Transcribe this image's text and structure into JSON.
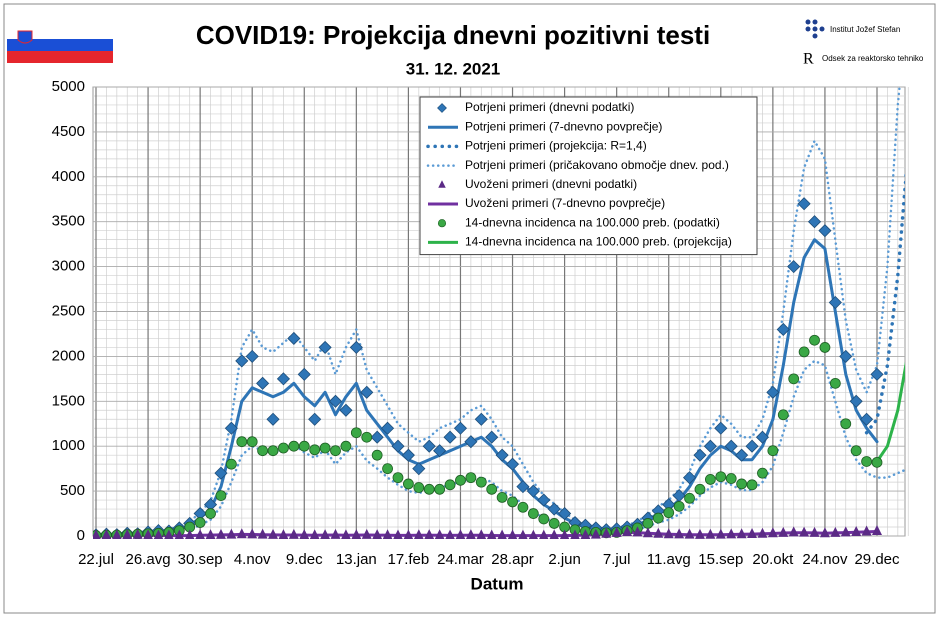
{
  "header": {
    "logos": [
      "Institut Jožef Stefan",
      "Odsek za reaktorsko tehniko"
    ]
  },
  "chart_data": {
    "type": "line",
    "title": "COVID19: Projekcija dnevni pozitivni testi",
    "subtitle": "31. 12. 2021",
    "x_label": "Datum",
    "categories": [
      "22.jul",
      null,
      null,
      null,
      null,
      "26.avg",
      null,
      null,
      null,
      null,
      "30.sep",
      null,
      null,
      null,
      null,
      "4.nov",
      null,
      null,
      null,
      null,
      "9.dec",
      null,
      null,
      null,
      null,
      "13.jan",
      null,
      null,
      null,
      null,
      "17.feb",
      null,
      null,
      null,
      null,
      "24.mar",
      null,
      null,
      null,
      null,
      "28.apr",
      null,
      null,
      null,
      null,
      "2.jun",
      null,
      null,
      null,
      null,
      "7.jul",
      null,
      null,
      null,
      null,
      "11.avg",
      null,
      null,
      null,
      null,
      "15.sep",
      null,
      null,
      null,
      null,
      "20.okt",
      null,
      null,
      null,
      null,
      "24.nov",
      null,
      null,
      null,
      null,
      "29.dec",
      null,
      null,
      null
    ],
    "ylim": [
      0,
      5000
    ],
    "yticks": [
      0,
      500,
      1000,
      1500,
      2000,
      2500,
      3000,
      3500,
      4000,
      4500,
      5000
    ],
    "grid": true,
    "legend": "top",
    "series": [
      {
        "name": "Potrjeni primeri (dnevni podatki)",
        "style": "diamond",
        "color": "#2e75b6",
        "values": [
          12,
          20,
          15,
          30,
          25,
          45,
          60,
          55,
          90,
          140,
          250,
          350,
          700,
          1200,
          1950,
          2000,
          1700,
          1300,
          1750,
          2200,
          1800,
          1300,
          2100,
          1500,
          1400,
          2100,
          1600,
          1100,
          1200,
          1000,
          900,
          750,
          1000,
          950,
          1100,
          1200,
          1050,
          1300,
          1100,
          900,
          800,
          550,
          500,
          400,
          300,
          250,
          150,
          120,
          90,
          70,
          80,
          100,
          130,
          200,
          280,
          350,
          450,
          650,
          900,
          1000,
          1200,
          1000,
          900,
          1000,
          1100,
          1600,
          2300,
          3000,
          3700,
          3500,
          3400,
          2600,
          2000,
          1500,
          1300,
          1800,
          null,
          null,
          null
        ]
      },
      {
        "name": "Potrjeni primeri (7-dnevno povprečje)",
        "style": "line",
        "color": "#2e75b6",
        "values": [
          10,
          15,
          20,
          25,
          30,
          40,
          50,
          60,
          80,
          120,
          200,
          300,
          550,
          1000,
          1500,
          1650,
          1600,
          1550,
          1600,
          1700,
          1550,
          1450,
          1600,
          1350,
          1550,
          1700,
          1400,
          1250,
          1100,
          950,
          850,
          800,
          850,
          900,
          950,
          1000,
          1050,
          1100,
          1000,
          850,
          750,
          600,
          450,
          350,
          280,
          200,
          140,
          100,
          80,
          60,
          70,
          90,
          120,
          180,
          250,
          300,
          400,
          550,
          750,
          900,
          1000,
          950,
          850,
          850,
          1000,
          1300,
          1900,
          2600,
          3100,
          3300,
          3200,
          2500,
          1800,
          1400,
          1200,
          1050,
          null,
          null,
          null
        ]
      },
      {
        "name": "Potrjeni primeri (projekcija: R=1,4)",
        "style": "dotted-bold",
        "color": "#2e75b6",
        "values": [
          null,
          null,
          null,
          null,
          null,
          null,
          null,
          null,
          null,
          null,
          null,
          null,
          null,
          null,
          null,
          null,
          null,
          null,
          null,
          null,
          null,
          null,
          null,
          null,
          null,
          null,
          null,
          null,
          null,
          null,
          null,
          null,
          null,
          null,
          null,
          null,
          null,
          null,
          null,
          null,
          null,
          null,
          null,
          null,
          null,
          null,
          null,
          null,
          null,
          null,
          null,
          null,
          null,
          null,
          null,
          null,
          null,
          null,
          null,
          null,
          null,
          null,
          null,
          null,
          null,
          null,
          null,
          null,
          null,
          null,
          null,
          null,
          null,
          null,
          1150,
          1300,
          1900,
          2900,
          4300
        ]
      },
      {
        "name": "Potrjeni primeri (pričakovano območje dnev. pod.)",
        "style": "dotted",
        "color": "#5b9bd5",
        "values": [
          15,
          20,
          25,
          35,
          40,
          55,
          65,
          80,
          105,
          160,
          260,
          390,
          720,
          1300,
          2100,
          2300,
          2100,
          2050,
          2150,
          2250,
          2100,
          1950,
          2150,
          1800,
          2100,
          2300,
          1850,
          1650,
          1450,
          1250,
          1150,
          1050,
          1100,
          1200,
          1250,
          1300,
          1400,
          1450,
          1300,
          1100,
          1000,
          800,
          600,
          450,
          360,
          260,
          180,
          130,
          100,
          80,
          90,
          120,
          160,
          240,
          330,
          400,
          520,
          720,
          1000,
          1200,
          1350,
          1250,
          1100,
          1100,
          1300,
          1700,
          2500,
          3400,
          4100,
          4400,
          4200,
          3300,
          2400,
          1850,
          1600,
          1900,
          3000,
          4800,
          6000
        ],
        "lower": [
          5,
          8,
          12,
          15,
          18,
          25,
          30,
          35,
          50,
          70,
          120,
          180,
          330,
          600,
          900,
          1000,
          950,
          930,
          960,
          1020,
          930,
          870,
          960,
          800,
          930,
          1000,
          840,
          750,
          650,
          570,
          500,
          480,
          500,
          540,
          570,
          600,
          630,
          650,
          600,
          500,
          450,
          350,
          270,
          200,
          160,
          120,
          80,
          60,
          50,
          35,
          40,
          55,
          70,
          110,
          150,
          180,
          240,
          330,
          450,
          540,
          600,
          570,
          510,
          510,
          600,
          780,
          1150,
          1550,
          1850,
          1950,
          1900,
          1500,
          1100,
          850,
          700,
          650,
          650,
          700,
          750
        ]
      },
      {
        "name": "Uvoženi primeri (dnevni podatki)",
        "style": "triangle",
        "color": "#5b2a86",
        "values": [
          5,
          8,
          6,
          10,
          12,
          8,
          6,
          5,
          4,
          5,
          8,
          10,
          12,
          15,
          20,
          18,
          15,
          12,
          10,
          12,
          10,
          8,
          10,
          12,
          8,
          10,
          12,
          10,
          8,
          6,
          6,
          8,
          10,
          8,
          6,
          8,
          10,
          8,
          6,
          5,
          5,
          4,
          3,
          4,
          5,
          4,
          6,
          10,
          15,
          25,
          35,
          45,
          40,
          30,
          25,
          20,
          18,
          15,
          12,
          14,
          15,
          18,
          20,
          22,
          25,
          30,
          35,
          40,
          38,
          35,
          30,
          35,
          40,
          45,
          50,
          55,
          null,
          null,
          null
        ]
      },
      {
        "name": "Uvoženi primeri (7-dnevno povprečje)",
        "style": "line",
        "color": "#7030a0",
        "values": [
          6,
          7,
          7,
          9,
          10,
          8,
          6,
          5,
          5,
          5,
          8,
          10,
          12,
          15,
          18,
          17,
          15,
          12,
          11,
          11,
          10,
          9,
          10,
          11,
          9,
          10,
          11,
          10,
          8,
          7,
          7,
          8,
          9,
          8,
          7,
          8,
          9,
          8,
          6,
          5,
          5,
          4,
          4,
          4,
          5,
          5,
          7,
          10,
          15,
          24,
          33,
          40,
          38,
          30,
          25,
          20,
          17,
          15,
          13,
          14,
          15,
          17,
          19,
          21,
          24,
          28,
          33,
          37,
          36,
          34,
          31,
          34,
          38,
          42,
          46,
          50,
          null,
          null,
          null
        ]
      },
      {
        "name": "14-dnevna incidenca na 100.000 preb. (podatki)",
        "style": "circle",
        "color": "#3aa845",
        "values": [
          5,
          8,
          10,
          15,
          20,
          25,
          30,
          40,
          60,
          100,
          150,
          250,
          450,
          800,
          1050,
          1050,
          950,
          950,
          980,
          1000,
          1000,
          960,
          980,
          950,
          1000,
          1150,
          1100,
          900,
          750,
          650,
          580,
          540,
          520,
          520,
          570,
          620,
          650,
          600,
          520,
          430,
          380,
          320,
          250,
          190,
          140,
          100,
          70,
          50,
          40,
          35,
          40,
          60,
          90,
          140,
          200,
          260,
          330,
          420,
          520,
          630,
          660,
          640,
          580,
          570,
          700,
          950,
          1350,
          1750,
          2050,
          2180,
          2100,
          1700,
          1250,
          950,
          830,
          820,
          null,
          null,
          null
        ]
      },
      {
        "name": "14-dnevna incidenca na 100.000 preb. (projekcija)",
        "style": "line",
        "color": "#2db34a",
        "values": [
          null,
          null,
          null,
          null,
          null,
          null,
          null,
          null,
          null,
          null,
          null,
          null,
          null,
          null,
          null,
          null,
          null,
          null,
          null,
          null,
          null,
          null,
          null,
          null,
          null,
          null,
          null,
          null,
          null,
          null,
          null,
          null,
          null,
          null,
          null,
          null,
          null,
          null,
          null,
          null,
          null,
          null,
          null,
          null,
          null,
          null,
          null,
          null,
          null,
          null,
          null,
          null,
          null,
          null,
          null,
          null,
          null,
          null,
          null,
          null,
          null,
          null,
          null,
          null,
          null,
          null,
          null,
          null,
          null,
          null,
          null,
          null,
          null,
          null,
          null,
          830,
          1000,
          1400,
          2050
        ]
      }
    ]
  }
}
